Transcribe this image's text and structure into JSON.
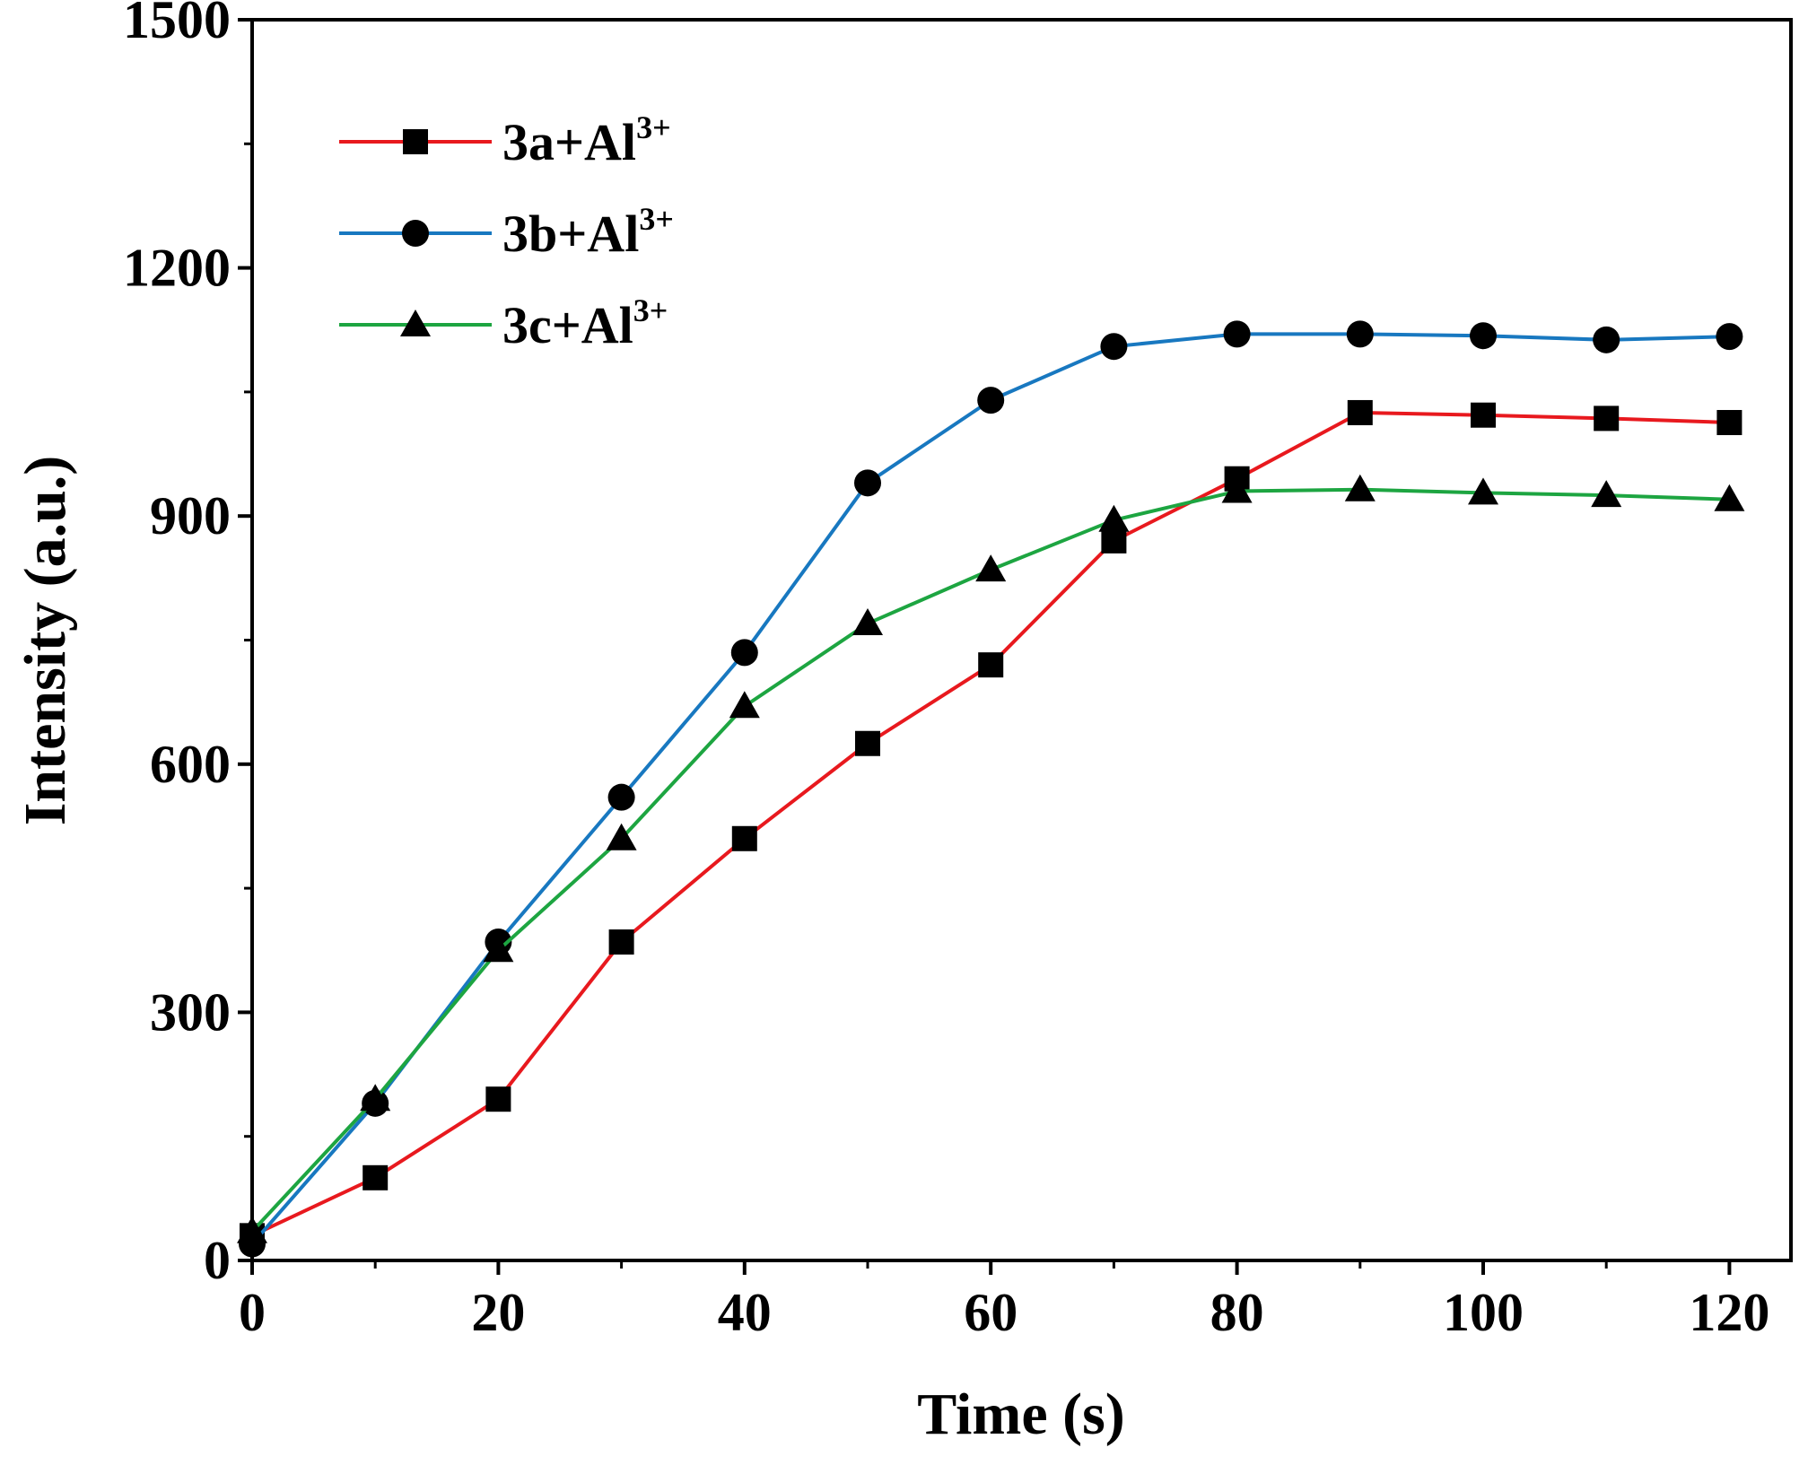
{
  "chart_data": {
    "type": "line",
    "title": "",
    "xlabel": "Time (s)",
    "ylabel": "Intensity (a.u.)",
    "xlim": [
      0,
      125
    ],
    "ylim": [
      0,
      1500
    ],
    "xticks": [
      0,
      20,
      40,
      60,
      80,
      100,
      120
    ],
    "yticks": [
      0,
      300,
      600,
      900,
      1200,
      1500
    ],
    "x": [
      0,
      10,
      20,
      30,
      40,
      50,
      60,
      70,
      80,
      90,
      100,
      110,
      120
    ],
    "legend_position": "top-left",
    "series": [
      {
        "name": "3a+Al3+",
        "label_base": "3a+Al",
        "label_sup": "3+",
        "color": "#e8191e",
        "marker": "square",
        "values": [
          30,
          100,
          195,
          385,
          510,
          625,
          720,
          870,
          945,
          1025,
          1022,
          1018,
          1013
        ]
      },
      {
        "name": "3b+Al3+",
        "label_base": "3b+Al",
        "label_sup": "3+",
        "color": "#1878c0",
        "marker": "circle",
        "values": [
          20,
          190,
          385,
          560,
          735,
          940,
          1040,
          1105,
          1120,
          1120,
          1118,
          1113,
          1117
        ]
      },
      {
        "name": "3c+Al3+",
        "label_base": "3c+Al",
        "label_sup": "3+",
        "color": "#1da541",
        "marker": "triangle",
        "values": [
          35,
          195,
          375,
          510,
          670,
          770,
          835,
          895,
          930,
          932,
          928,
          925,
          920
        ]
      }
    ]
  }
}
